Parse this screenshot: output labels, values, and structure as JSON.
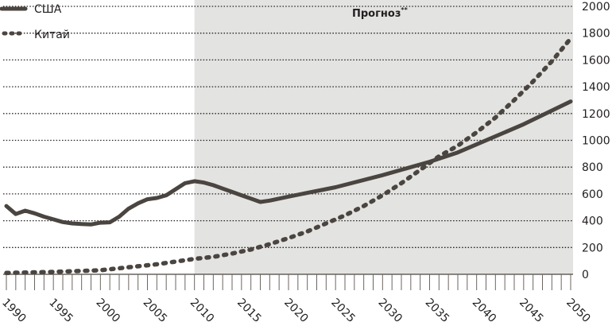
{
  "chart_data": {
    "type": "line",
    "title": "",
    "xlabel": "",
    "ylabel": "",
    "xlim": [
      1990,
      2050
    ],
    "ylim": [
      0,
      2000
    ],
    "y_ticks": [
      0,
      200,
      400,
      600,
      800,
      1000,
      1200,
      1400,
      1600,
      1800,
      2000
    ],
    "x_tick_labels": [
      1990,
      1995,
      2000,
      2005,
      2010,
      2015,
      2020,
      2025,
      2030,
      2035,
      2040,
      2045,
      2050
    ],
    "x_minor_ticks_every": 1,
    "y_axis_position": "right",
    "grid": {
      "horizontal": true,
      "style": "dotted"
    },
    "legend_position": "top-left",
    "annotations": [
      {
        "text": "Прогноз",
        "superscript": "**",
        "region": [
          2010,
          2050
        ],
        "shaded": true,
        "shade_color": "#e3e3e1"
      }
    ],
    "series": [
      {
        "name": "США",
        "style": "solid",
        "color": "#4a4540",
        "x": [
          1990,
          1991,
          1992,
          1993,
          1994,
          1995,
          1996,
          1997,
          1998,
          1999,
          2000,
          2001,
          2002,
          2003,
          2004,
          2005,
          2006,
          2007,
          2008,
          2009,
          2010,
          2011,
          2012,
          2013,
          2014,
          2015,
          2016,
          2017,
          2018,
          2020,
          2025,
          2030,
          2035,
          2038,
          2040,
          2045,
          2050
        ],
        "values": [
          510,
          450,
          475,
          455,
          430,
          410,
          390,
          380,
          375,
          372,
          385,
          388,
          430,
          490,
          530,
          560,
          570,
          590,
          635,
          680,
          695,
          685,
          665,
          640,
          615,
          590,
          565,
          540,
          550,
          580,
          650,
          740,
          840,
          910,
          970,
          1120,
          1290
        ]
      },
      {
        "name": "Китай",
        "style": "dotted",
        "color": "#4a4540",
        "x": [
          1990,
          1995,
          2000,
          2002,
          2004,
          2006,
          2008,
          2010,
          2012,
          2014,
          2016,
          2018,
          2020,
          2022,
          2024,
          2026,
          2028,
          2030,
          2032,
          2034,
          2036,
          2038,
          2040,
          2042,
          2044,
          2046,
          2048,
          2050
        ],
        "values": [
          10,
          18,
          30,
          45,
          60,
          75,
          95,
          115,
          130,
          155,
          185,
          225,
          270,
          320,
          380,
          440,
          510,
          590,
          680,
          780,
          880,
          960,
          1060,
          1170,
          1300,
          1440,
          1590,
          1760
        ]
      }
    ]
  },
  "legend": {
    "items": [
      {
        "label": "США",
        "style": "solid"
      },
      {
        "label": "Китай",
        "style": "dotted"
      }
    ]
  },
  "forecast": {
    "label": "Прогноз",
    "footnote_mark": "**"
  },
  "colors": {
    "line": "#4a4540",
    "grid": "#231f20",
    "forecast_bg": "#e3e3e1",
    "axis": "#4a4540",
    "text": "#231f20"
  }
}
